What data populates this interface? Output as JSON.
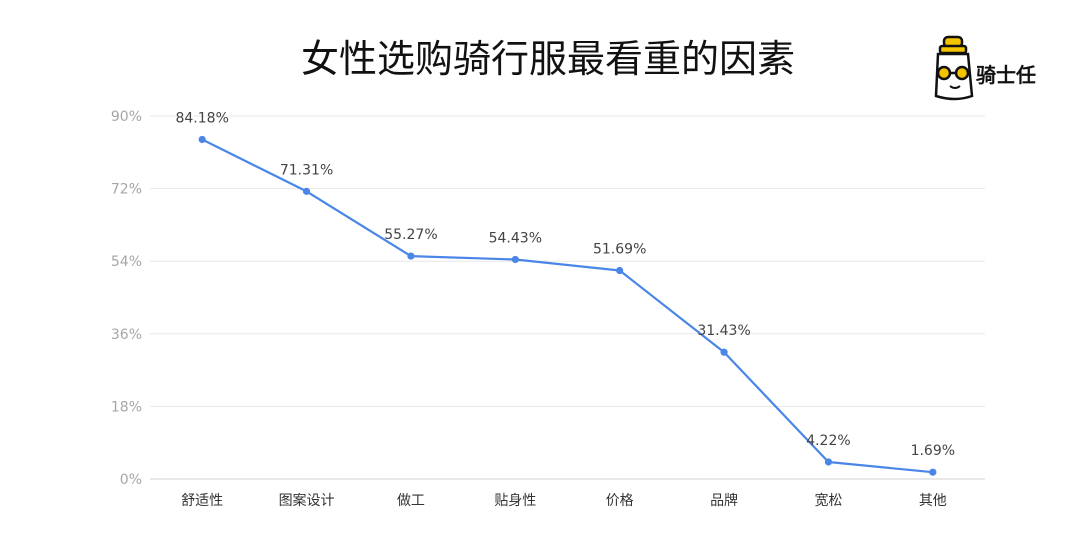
{
  "chart_data": {
    "type": "line",
    "title": "女性选购骑行服最看重的因素",
    "categories": [
      "舒适性",
      "图案设计",
      "做工",
      "贴身性",
      "价格",
      "品牌",
      "宽松",
      "其他"
    ],
    "series": [
      {
        "values": [
          84.18,
          71.31,
          55.27,
          54.43,
          51.69,
          31.43,
          4.22,
          1.69
        ],
        "labels": [
          "84.18%",
          "71.31%",
          "55.27%",
          "54.43%",
          "51.69%",
          "31.43%",
          "4.22%",
          "1.69%"
        ]
      }
    ],
    "ylim": [
      0,
      90
    ],
    "yticks": [
      {
        "value": 0,
        "label": "0%"
      },
      {
        "value": 18,
        "label": "18%"
      },
      {
        "value": 36,
        "label": "36%"
      },
      {
        "value": 54,
        "label": "54%"
      },
      {
        "value": 72,
        "label": "72%"
      },
      {
        "value": 90,
        "label": "90%"
      }
    ],
    "grid": true,
    "legend": "none",
    "line_color": "#4a86e8"
  },
  "brand": {
    "name": "骑士任",
    "logo_icon": "cartoon-bottle-sunglasses-icon",
    "colors": {
      "yellow": "#f5c400",
      "outline": "#111111"
    }
  }
}
